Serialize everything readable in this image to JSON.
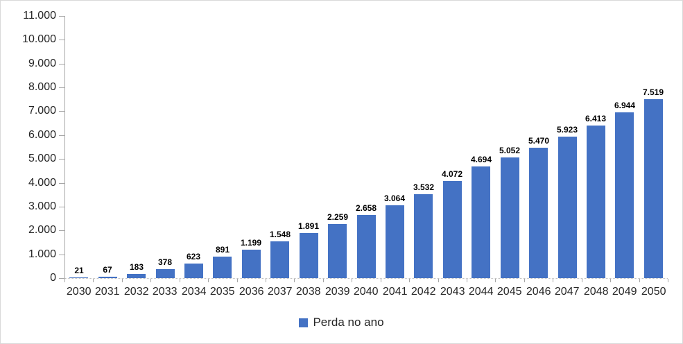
{
  "chart_data": {
    "type": "bar",
    "title": "",
    "xlabel": "",
    "ylabel": "",
    "categories": [
      "2030",
      "2031",
      "2032",
      "2033",
      "2034",
      "2035",
      "2036",
      "2037",
      "2038",
      "2039",
      "2040",
      "2041",
      "2042",
      "2043",
      "2044",
      "2045",
      "2046",
      "2047",
      "2048",
      "2049",
      "2050"
    ],
    "series": [
      {
        "name": "Perda no ano",
        "values": [
          21,
          67,
          183,
          378,
          623,
          891,
          1199,
          1548,
          1891,
          2259,
          2658,
          3064,
          3532,
          4072,
          4694,
          5052,
          5470,
          5923,
          6413,
          6944,
          7519
        ]
      }
    ],
    "data_labels": [
      "21",
      "67",
      "183",
      "378",
      "623",
      "891",
      "1.199",
      "1.548",
      "1.891",
      "2.259",
      "2.658",
      "3.064",
      "3.532",
      "4.072",
      "4.694",
      "5.052",
      "5.470",
      "5.923",
      "6.413",
      "6.944",
      "7.519"
    ],
    "y_tick_labels": [
      "11.000",
      "10.000",
      "9.000",
      "8.000",
      "7.000",
      "6.000",
      "5.000",
      "4.000",
      "3.000",
      "2.000",
      "1.000",
      "0"
    ],
    "ylim": [
      0,
      11000
    ],
    "grid": false,
    "legend": {
      "position": "bottom",
      "label": "Perda no ano"
    },
    "colors": {
      "bar": "#4472c4",
      "axis_line": "#a6a6a6",
      "baseline": "#bfbfbf",
      "axis_text": "#262626",
      "data_label_text": "#000000",
      "frame_border": "#d9d9d9"
    }
  }
}
